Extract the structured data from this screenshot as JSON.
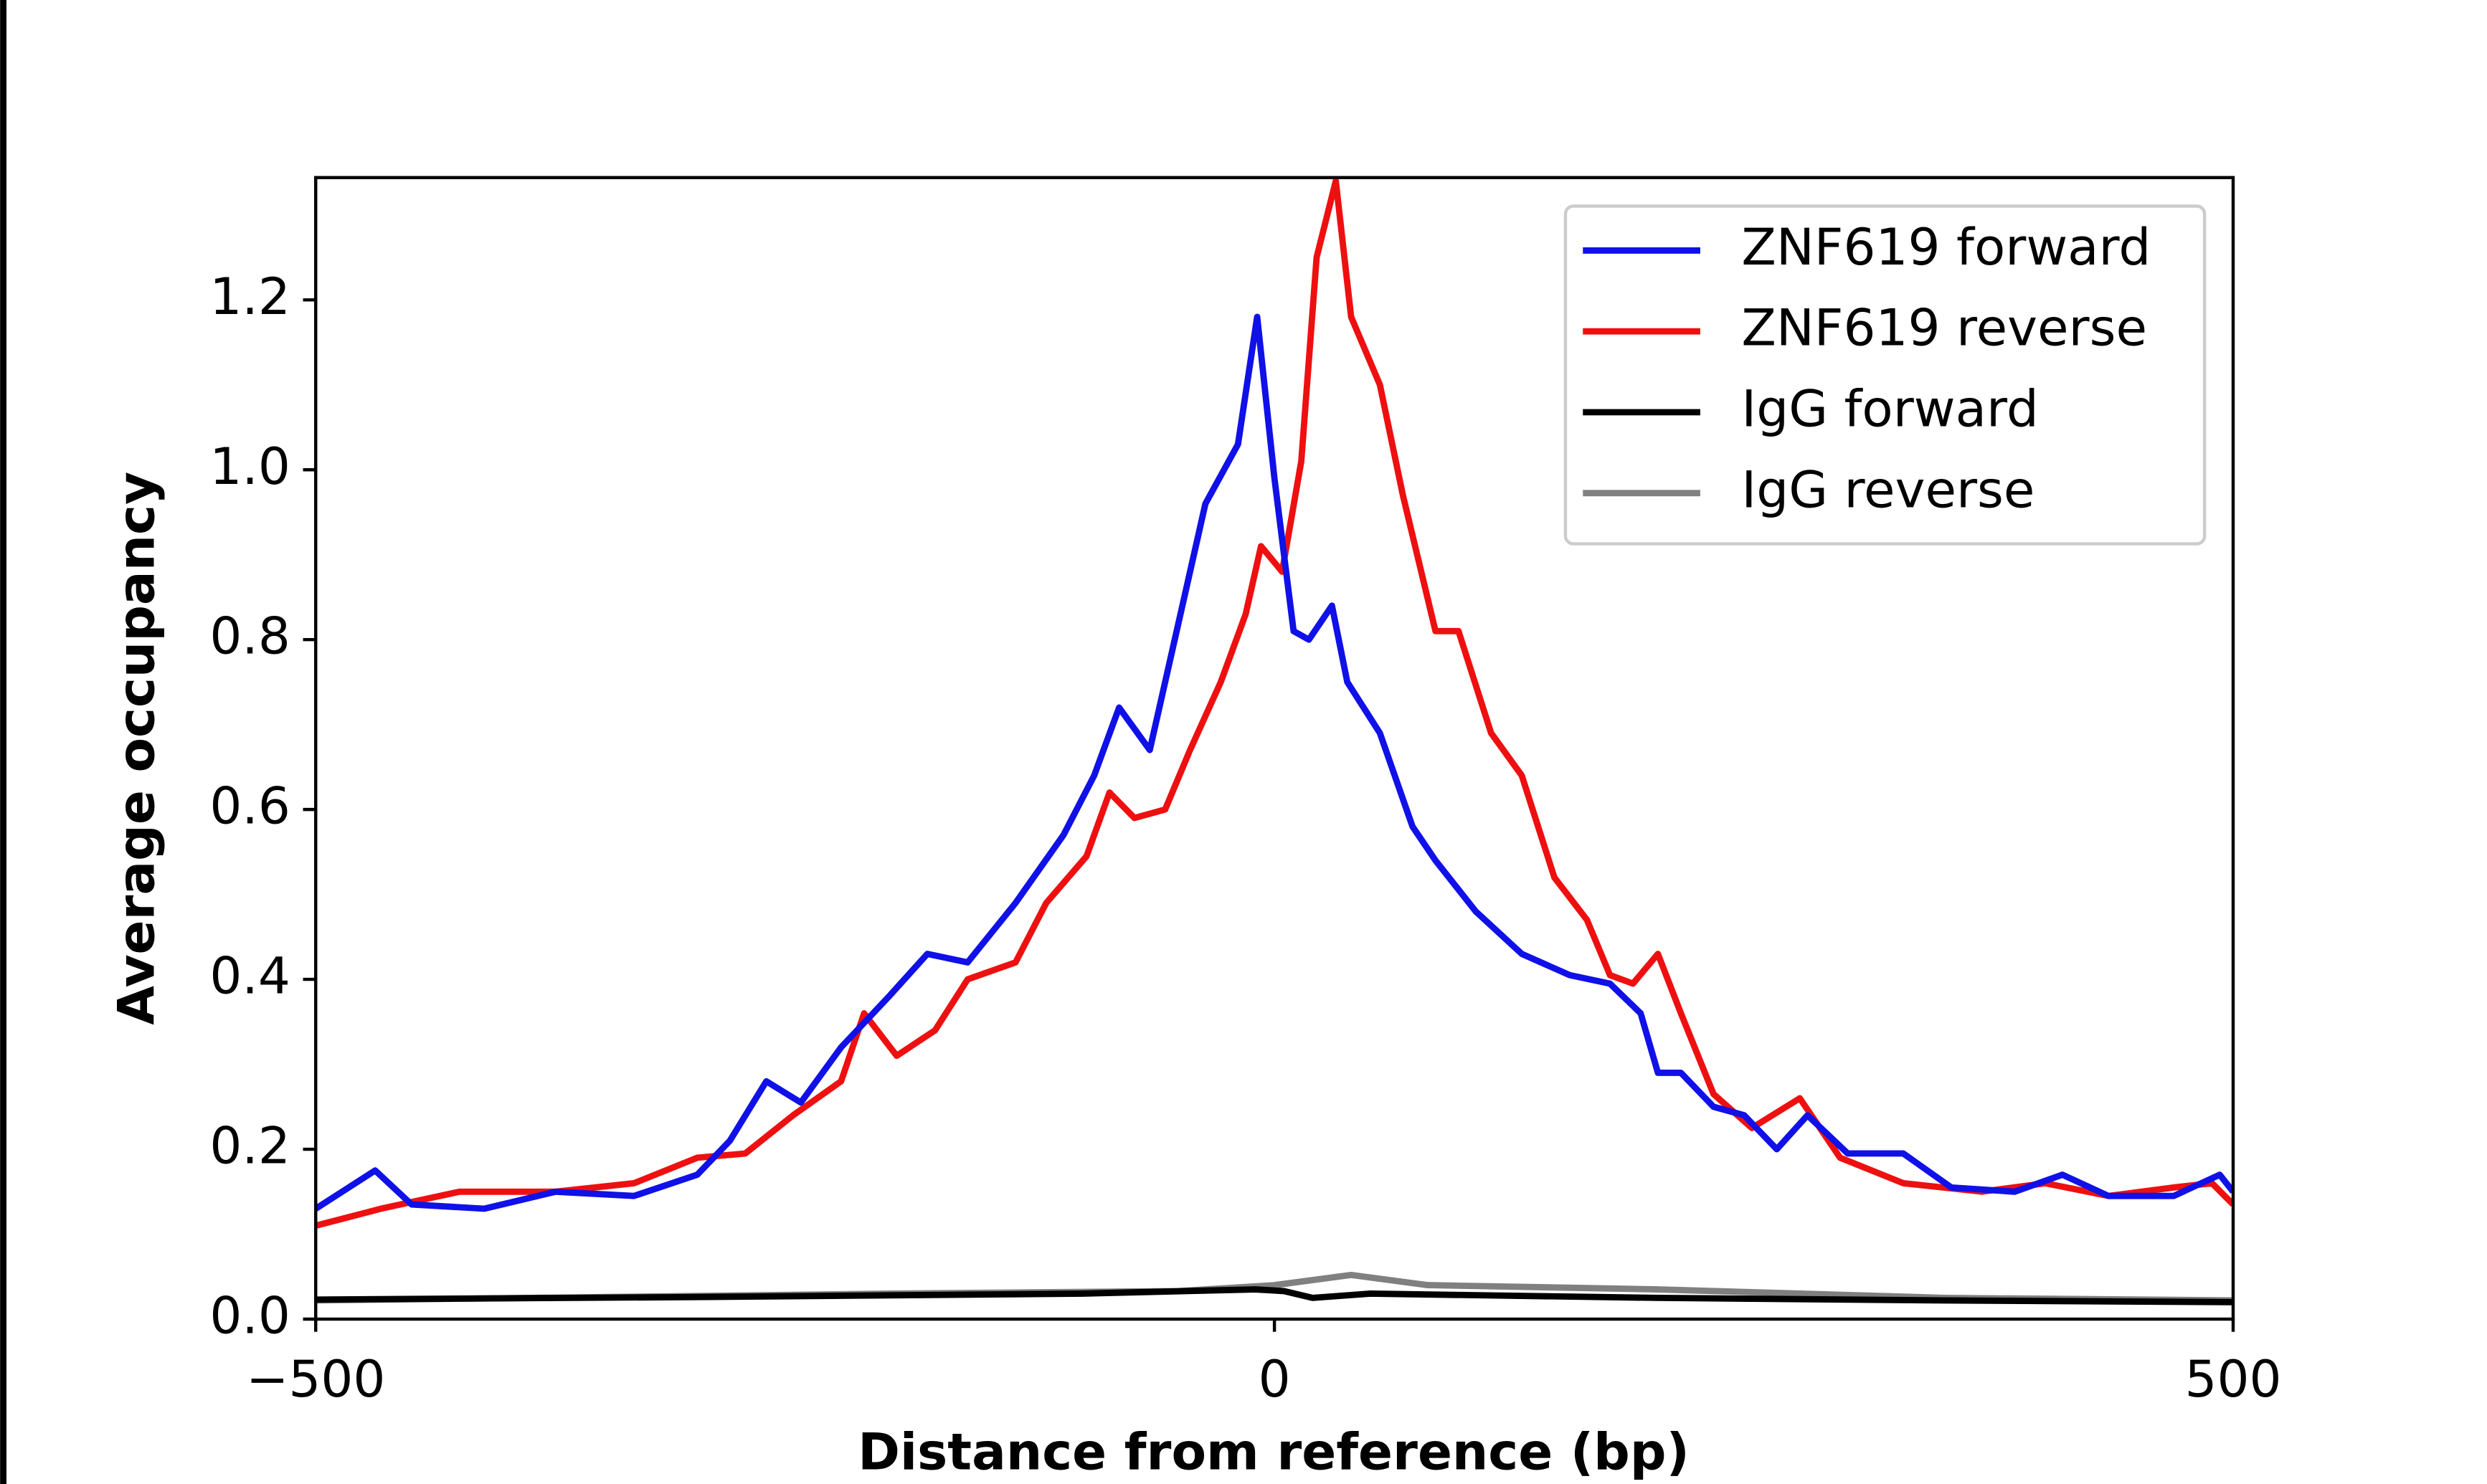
{
  "chart_data": {
    "type": "line",
    "xlabel": "Distance from reference (bp)",
    "ylabel": "Average occupancy",
    "xlim": [
      -500,
      500
    ],
    "ylim": [
      0,
      1.344
    ],
    "xticks": [
      {
        "value": -500,
        "label": "−500"
      },
      0,
      500
    ],
    "yticks": [
      {
        "value": 0,
        "label": "0.0"
      },
      0.2,
      0.4,
      0.6,
      0.8,
      {
        "value": 1,
        "label": "1.0"
      },
      1.2
    ],
    "legend": "upper right",
    "series": [
      {
        "name": "ZNF619 forward",
        "color": "#1010e8",
        "x": [
          -500,
          -469,
          -450,
          -412,
          -375,
          -334,
          -301,
          -284,
          -265,
          -247,
          -226,
          -201,
          -181,
          -160,
          -135,
          -110,
          -94,
          -81,
          -65,
          -48,
          -36,
          -19,
          -9,
          0,
          10,
          18,
          30,
          38,
          55,
          72,
          84,
          105,
          129,
          154,
          175,
          191,
          200,
          212,
          229,
          245,
          262,
          278,
          299,
          328,
          353,
          386,
          411,
          435,
          469,
          493,
          500
        ],
        "values": [
          0.13,
          0.175,
          0.135,
          0.13,
          0.15,
          0.145,
          0.17,
          0.21,
          0.28,
          0.255,
          0.32,
          0.38,
          0.43,
          0.42,
          0.49,
          0.57,
          0.64,
          0.72,
          0.67,
          0.84,
          0.96,
          1.03,
          1.18,
          0.99,
          0.81,
          0.8,
          0.84,
          0.75,
          0.69,
          0.58,
          0.54,
          0.48,
          0.43,
          0.405,
          0.395,
          0.36,
          0.29,
          0.29,
          0.25,
          0.24,
          0.2,
          0.24,
          0.195,
          0.195,
          0.155,
          0.15,
          0.17,
          0.145,
          0.145,
          0.17,
          0.15
        ]
      },
      {
        "name": "ZNF619 reverse",
        "color": "#ee1010",
        "x": [
          -500,
          -466,
          -425,
          -375,
          -334,
          -301,
          -276,
          -251,
          -226,
          -214,
          -197,
          -177,
          -160,
          -135,
          -119,
          -98,
          -86,
          -73,
          -57,
          -44,
          -28,
          -15,
          -7,
          4,
          14,
          22,
          32,
          40,
          55,
          67,
          84,
          96,
          113,
          129,
          146,
          163,
          175,
          187,
          200,
          212,
          229,
          249,
          274,
          295,
          328,
          369,
          402,
          435,
          469,
          489,
          500
        ],
        "values": [
          0.11,
          0.13,
          0.15,
          0.15,
          0.16,
          0.19,
          0.195,
          0.24,
          0.28,
          0.36,
          0.31,
          0.34,
          0.4,
          0.42,
          0.49,
          0.545,
          0.62,
          0.59,
          0.6,
          0.67,
          0.75,
          0.83,
          0.91,
          0.88,
          1.01,
          1.25,
          1.34,
          1.18,
          1.1,
          0.97,
          0.81,
          0.81,
          0.69,
          0.64,
          0.52,
          0.47,
          0.405,
          0.395,
          0.43,
          0.36,
          0.265,
          0.225,
          0.26,
          0.19,
          0.16,
          0.15,
          0.16,
          0.145,
          0.155,
          0.16,
          0.135
        ]
      },
      {
        "name": "IgG forward",
        "color": "#000000",
        "x": [
          -500,
          -300,
          -100,
          -10,
          5,
          20,
          50,
          200,
          350,
          500
        ],
        "values": [
          0.023,
          0.026,
          0.03,
          0.035,
          0.033,
          0.025,
          0.03,
          0.025,
          0.022,
          0.02
        ]
      },
      {
        "name": "IgG reverse",
        "color": "#808080",
        "x": [
          -500,
          -200,
          -50,
          0,
          40,
          80,
          200,
          350,
          500
        ],
        "values": [
          0.022,
          0.03,
          0.033,
          0.04,
          0.052,
          0.04,
          0.035,
          0.025,
          0.022
        ]
      }
    ]
  }
}
